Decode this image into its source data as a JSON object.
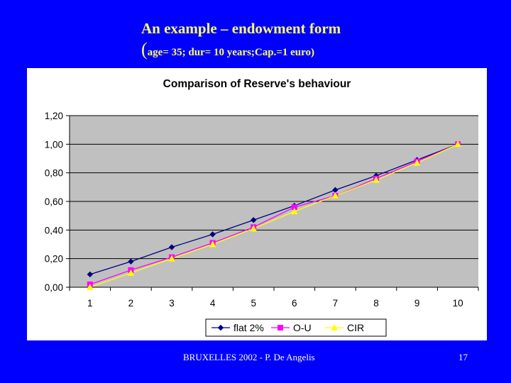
{
  "slide": {
    "title_line1": "An example – endowment form",
    "title_paren": "(",
    "title_line2": "age= 35; dur= 10 years;Cap.=1 euro)",
    "footer_text": "BRUXELLES 2002 - P. De Angelis",
    "page_number": "17"
  },
  "colors": {
    "background": "#0000ff",
    "title": "#ffff66",
    "plot_area": "#c0c0c0"
  },
  "chart_data": {
    "type": "line",
    "title": "Comparison of Reserve's behaviour",
    "xlabel": "",
    "ylabel": "",
    "categories": [
      "1",
      "2",
      "3",
      "4",
      "5",
      "6",
      "7",
      "8",
      "9",
      "10"
    ],
    "y_ticks": [
      "0,00",
      "0,20",
      "0,40",
      "0,60",
      "0,80",
      "1,00",
      "1,20"
    ],
    "ylim": [
      0,
      1.2
    ],
    "grid": "horizontal",
    "legend_position": "bottom",
    "series": [
      {
        "name": "flat 2%",
        "color": "#000080",
        "marker": "diamond",
        "values": [
          0.09,
          0.18,
          0.28,
          0.37,
          0.47,
          0.57,
          0.68,
          0.78,
          0.89,
          1.0
        ]
      },
      {
        "name": "O-U",
        "color": "#ff00ff",
        "marker": "square",
        "values": [
          0.02,
          0.12,
          0.21,
          0.31,
          0.42,
          0.56,
          0.64,
          0.76,
          0.88,
          1.0
        ]
      },
      {
        "name": "CIR",
        "color": "#ffff00",
        "marker": "triangle",
        "values": [
          0.0,
          0.1,
          0.2,
          0.3,
          0.41,
          0.53,
          0.64,
          0.75,
          0.87,
          1.0
        ]
      }
    ]
  }
}
